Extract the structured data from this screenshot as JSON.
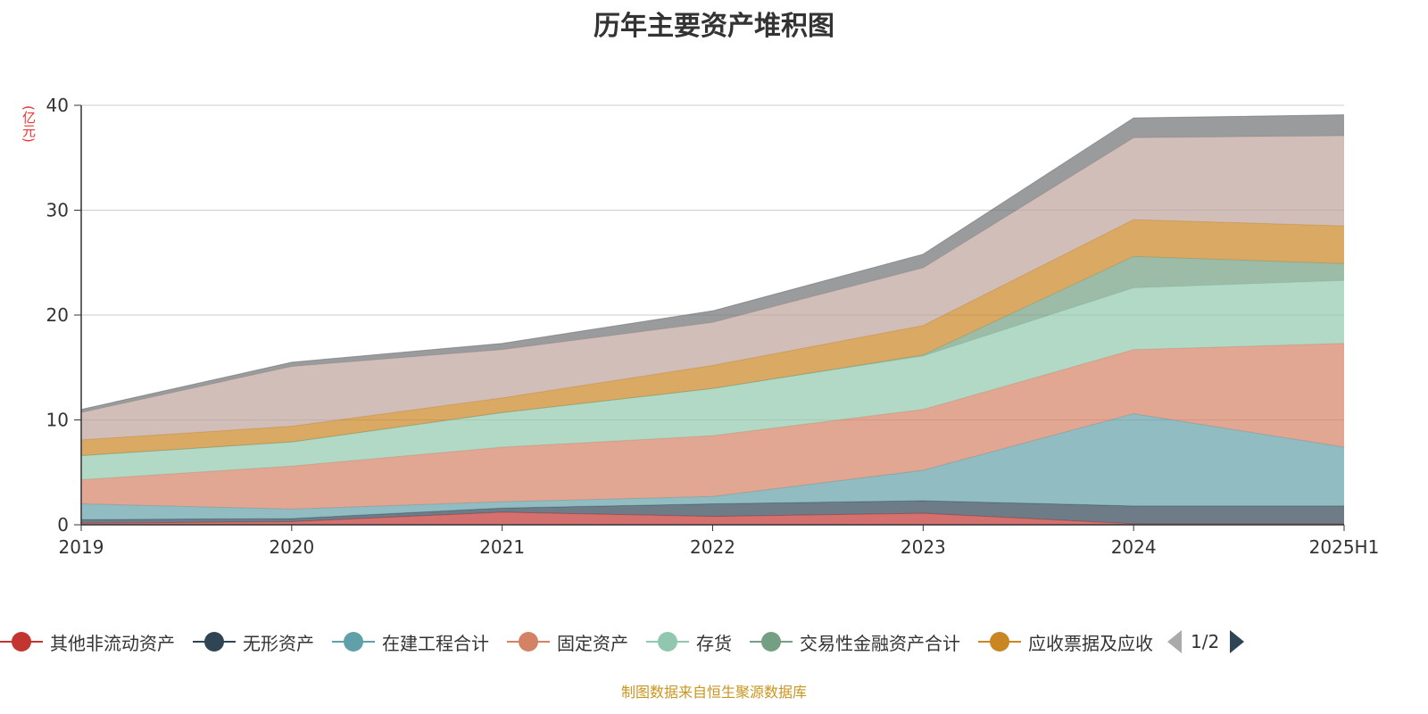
{
  "chart_data": {
    "type": "area",
    "stacked": true,
    "title": "历年主要资产堆积图",
    "ylabel": "(亿元)",
    "xlabel": "",
    "ylim": [
      0,
      40
    ],
    "yticks": [
      0,
      10,
      20,
      30,
      40
    ],
    "grid": true,
    "legend_placement": "bottom",
    "categories": [
      "2019",
      "2020",
      "2021",
      "2022",
      "2023",
      "2024",
      "2025H1"
    ],
    "series": [
      {
        "name": "其他非流动资产",
        "color": "#c23531",
        "values": [
          0.15,
          0.3,
          1.2,
          0.8,
          1.1,
          0.1,
          0.1
        ]
      },
      {
        "name": "无形资产",
        "color": "#2f4554",
        "values": [
          0.35,
          0.3,
          0.4,
          1.2,
          1.2,
          1.7,
          1.7
        ]
      },
      {
        "name": "在建工程合计",
        "color": "#61a0a8",
        "values": [
          1.5,
          0.9,
          0.6,
          0.7,
          2.9,
          8.8,
          5.6
        ]
      },
      {
        "name": "固定资产",
        "color": "#d48265",
        "values": [
          2.3,
          4.1,
          5.2,
          5.8,
          5.8,
          6.1,
          9.9
        ]
      },
      {
        "name": "存货",
        "color": "#91c7ae",
        "values": [
          2.3,
          2.3,
          3.3,
          4.5,
          5.1,
          5.9,
          6.0
        ]
      },
      {
        "name": "交易性金融资产合计",
        "color": "#749f83",
        "values": [
          0,
          0,
          0,
          0,
          0.1,
          3.0,
          1.6
        ]
      },
      {
        "name": "应收票据及应收",
        "color": "#ca8622",
        "values": [
          1.5,
          1.5,
          1.4,
          2.2,
          2.8,
          3.5,
          3.6
        ]
      },
      {
        "color": "#bda29a",
        "values": [
          2.6,
          5.7,
          4.6,
          4.1,
          5.5,
          7.8,
          8.6
        ]
      },
      {
        "color": "#6e7074",
        "values": [
          0.3,
          0.4,
          0.6,
          1.1,
          1.3,
          1.9,
          2.0
        ]
      }
    ]
  },
  "legend": {
    "page": "1/2"
  },
  "footer": "制图数据来自恒生聚源数据库"
}
